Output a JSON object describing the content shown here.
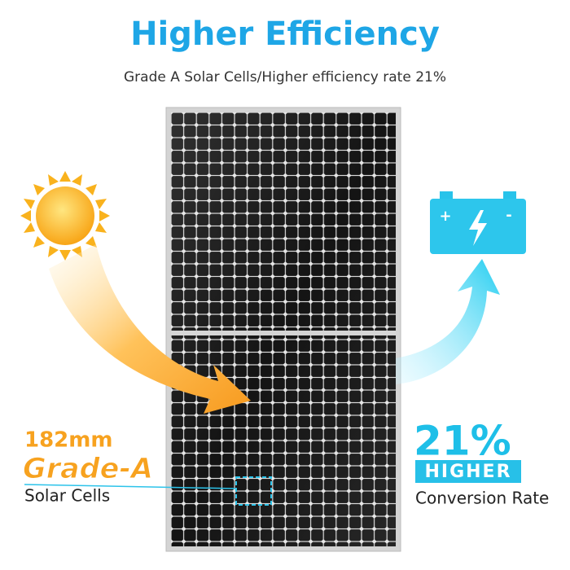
{
  "header": {
    "title": "Higher Efficiency",
    "subtitle": "Grade A Solar Cells/Higher efficiency rate 21%"
  },
  "left_callout": {
    "size": "182mm",
    "grade": "Grade-A",
    "label": "Solar Cells"
  },
  "right_callout": {
    "rate": "21%",
    "badge": "HIGHER",
    "label": "Conversion Rate"
  },
  "battery": {
    "plus": "+",
    "minus": "-"
  }
}
